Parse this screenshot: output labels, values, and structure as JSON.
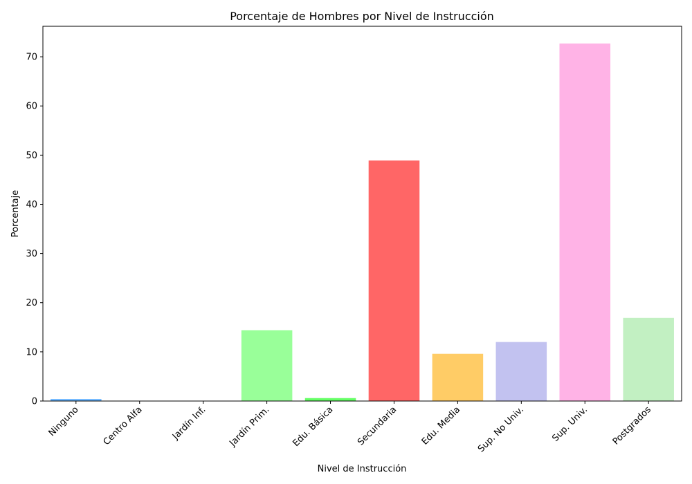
{
  "chart_data": {
    "type": "bar",
    "title": "Porcentaje de Hombres por Nivel de Instrucción",
    "xlabel": "Nivel de Instrucción",
    "ylabel": "Porcentaje",
    "ylim": [
      0,
      76.2
    ],
    "yticks": [
      0,
      10,
      20,
      30,
      40,
      50,
      60,
      70
    ],
    "grid": false,
    "categories": [
      "Ninguno",
      "Centro Alfa",
      "Jardín Inf.",
      "Jardín Prim.",
      "Edu. Básica",
      "Secundaria",
      "Edu. Media",
      "Sup. No Univ.",
      "Sup. Univ.",
      "Postgrados"
    ],
    "values": [
      0.4,
      0.0,
      0.0,
      14.4,
      0.6,
      48.9,
      9.6,
      12.0,
      72.7,
      16.9
    ],
    "colors": [
      "#66b3ff",
      "#ff9999",
      "#99ff99",
      "#99ff99",
      "#66ff66",
      "#ff6666",
      "#ffcc66",
      "#c2c2f0",
      "#ffb3e6",
      "#c2f0c2"
    ]
  }
}
